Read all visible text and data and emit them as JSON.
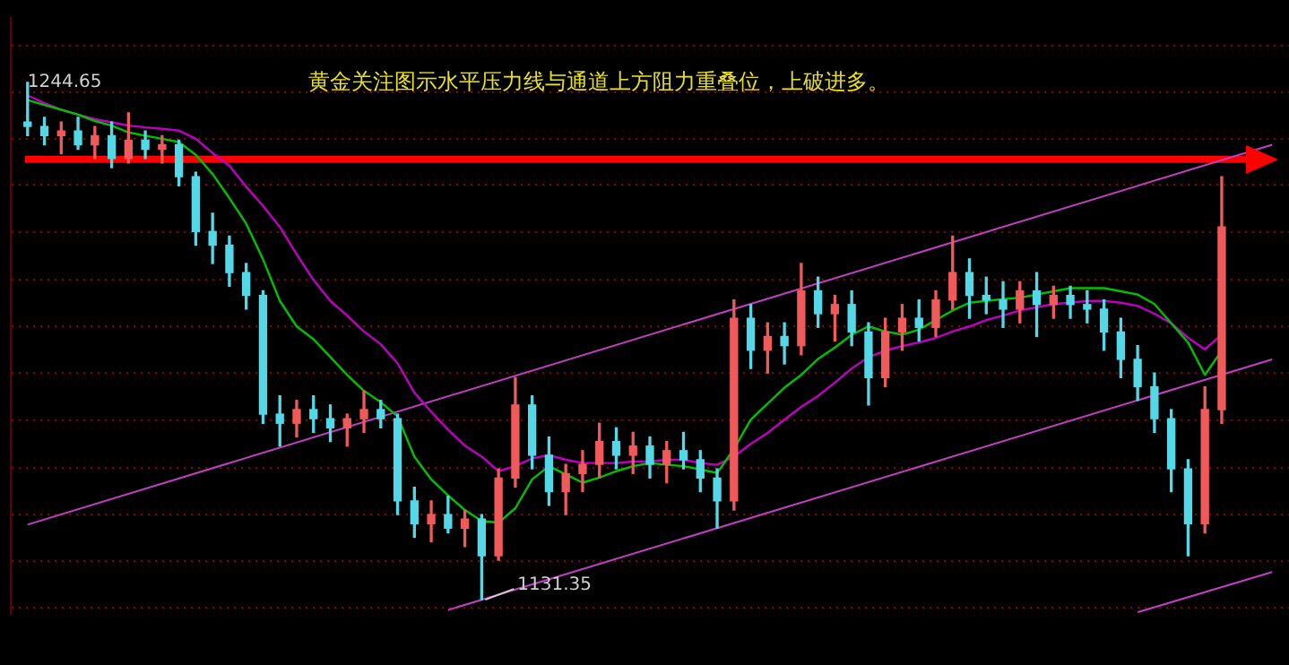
{
  "chart_data": {
    "type": "candlestick",
    "title": "黄金关注图示水平压力线与通道上方阻力重叠位，上破进多。",
    "categories": [
      null,
      null,
      null,
      null,
      null,
      null,
      null,
      null,
      null,
      null,
      null,
      null,
      null,
      null,
      null,
      null,
      null,
      null,
      null,
      null,
      null,
      null,
      null,
      null,
      null,
      null,
      null,
      null,
      null,
      null,
      null,
      null,
      null,
      null,
      null,
      null,
      null,
      null,
      null,
      null,
      null,
      null,
      null,
      null,
      null,
      null,
      null,
      null,
      null,
      null,
      null,
      null,
      null,
      null,
      null,
      null,
      null,
      null,
      null,
      null,
      null,
      null,
      null,
      null,
      null,
      null,
      null,
      null,
      null,
      null,
      null,
      null,
      null,
      null,
      null
    ],
    "ohlc": [
      [
        1236,
        1244.65,
        1233,
        1235
      ],
      [
        1235,
        1237,
        1231,
        1233
      ],
      [
        1233,
        1236,
        1229,
        1234
      ],
      [
        1234,
        1237,
        1230,
        1231
      ],
      [
        1231,
        1235,
        1228,
        1233
      ],
      [
        1233,
        1236,
        1226,
        1228
      ],
      [
        1228,
        1238,
        1227,
        1232
      ],
      [
        1232,
        1234,
        1228,
        1230
      ],
      [
        1230,
        1233,
        1227,
        1231
      ],
      [
        1231,
        1232,
        1222,
        1224
      ],
      [
        1224,
        1225,
        1209,
        1212
      ],
      [
        1212,
        1216,
        1205,
        1209
      ],
      [
        1209,
        1211,
        1200,
        1203
      ],
      [
        1203,
        1205,
        1195,
        1198
      ],
      [
        1198,
        1199,
        1170,
        1172
      ],
      [
        1172,
        1176,
        1165,
        1170
      ],
      [
        1170,
        1175,
        1167,
        1173
      ],
      [
        1173,
        1176,
        1168,
        1171
      ],
      [
        1171,
        1174,
        1166,
        1169
      ],
      [
        1169,
        1172,
        1165,
        1171
      ],
      [
        1171,
        1177,
        1168,
        1173
      ],
      [
        1173,
        1175,
        1169,
        1171
      ],
      [
        1171,
        1172,
        1150,
        1153
      ],
      [
        1153,
        1156,
        1145,
        1148
      ],
      [
        1148,
        1153,
        1144,
        1150
      ],
      [
        1150,
        1154,
        1146,
        1147
      ],
      [
        1147,
        1151,
        1143,
        1149
      ],
      [
        1149,
        1150,
        1131.35,
        1141
      ],
      [
        1141,
        1160,
        1140,
        1158
      ],
      [
        1158,
        1180,
        1156,
        1174
      ],
      [
        1174,
        1176,
        1160,
        1163
      ],
      [
        1163,
        1167,
        1152,
        1155
      ],
      [
        1155,
        1161,
        1150,
        1159
      ],
      [
        1159,
        1164,
        1155,
        1161
      ],
      [
        1161,
        1170,
        1158,
        1166
      ],
      [
        1166,
        1169,
        1160,
        1163
      ],
      [
        1163,
        1168,
        1159,
        1165
      ],
      [
        1165,
        1167,
        1158,
        1161
      ],
      [
        1161,
        1166,
        1157,
        1164
      ],
      [
        1164,
        1168,
        1160,
        1162
      ],
      [
        1162,
        1164,
        1155,
        1158
      ],
      [
        1158,
        1160,
        1147,
        1153
      ],
      [
        1153,
        1197,
        1151,
        1193
      ],
      [
        1193,
        1196,
        1182,
        1186
      ],
      [
        1186,
        1192,
        1181,
        1189
      ],
      [
        1189,
        1192,
        1183,
        1187
      ],
      [
        1187,
        1205,
        1185,
        1199
      ],
      [
        1199,
        1202,
        1191,
        1194
      ],
      [
        1194,
        1198,
        1188,
        1196
      ],
      [
        1196,
        1199,
        1187,
        1190
      ],
      [
        1190,
        1192,
        1174,
        1180
      ],
      [
        1180,
        1193,
        1178,
        1190
      ],
      [
        1190,
        1196,
        1186,
        1193
      ],
      [
        1193,
        1197,
        1188,
        1191
      ],
      [
        1191,
        1199,
        1189,
        1197
      ],
      [
        1197,
        1211,
        1195,
        1203
      ],
      [
        1203,
        1206,
        1193,
        1198
      ],
      [
        1198,
        1202,
        1194,
        1197
      ],
      [
        1197,
        1201,
        1191,
        1195
      ],
      [
        1195,
        1201,
        1192,
        1199
      ],
      [
        1199,
        1203,
        1189,
        1196
      ],
      [
        1196,
        1200,
        1193,
        1198
      ],
      [
        1198,
        1200,
        1193,
        1196
      ],
      [
        1196,
        1199,
        1192,
        1195
      ],
      [
        1195,
        1197,
        1186,
        1190
      ],
      [
        1190,
        1193,
        1180,
        1184
      ],
      [
        1184,
        1187,
        1175,
        1178
      ],
      [
        1178,
        1181,
        1168,
        1171
      ],
      [
        1171,
        1173,
        1155,
        1160
      ],
      [
        1160,
        1162,
        1141,
        1148
      ],
      [
        1148,
        1178,
        1146,
        1173
      ],
      [
        1173,
        1224,
        1170,
        1213
      ],
      null,
      null,
      null
    ],
    "colors": [
      "#54d8e8",
      "#54d8e8",
      "#f05a5a",
      "#54d8e8",
      "#f05a5a",
      "#54d8e8",
      "#f05a5a",
      "#54d8e8",
      "#f05a5a",
      "#54d8e8",
      "#54d8e8",
      "#54d8e8",
      "#54d8e8",
      "#54d8e8",
      "#54d8e8",
      "#54d8e8",
      "#f05a5a",
      "#54d8e8",
      "#54d8e8",
      "#f05a5a",
      "#f05a5a",
      "#54d8e8",
      "#54d8e8",
      "#54d8e8",
      "#f05a5a",
      "#54d8e8",
      "#f05a5a",
      "#54d8e8",
      "#f05a5a",
      "#f05a5a",
      "#54d8e8",
      "#54d8e8",
      "#f05a5a",
      "#f05a5a",
      "#f05a5a",
      "#54d8e8",
      "#f05a5a",
      "#54d8e8",
      "#f05a5a",
      "#54d8e8",
      "#54d8e8",
      "#54d8e8",
      "#f05a5a",
      "#54d8e8",
      "#f05a5a",
      "#54d8e8",
      "#f05a5a",
      "#54d8e8",
      "#f05a5a",
      "#54d8e8",
      "#54d8e8",
      "#f05a5a",
      "#f05a5a",
      "#54d8e8",
      "#f05a5a",
      "#f05a5a",
      "#54d8e8",
      "#54d8e8",
      "#54d8e8",
      "#f05a5a",
      "#54d8e8",
      "#f05a5a",
      "#54d8e8",
      "#54d8e8",
      "#54d8e8",
      "#54d8e8",
      "#54d8e8",
      "#54d8e8",
      "#54d8e8",
      "#54d8e8",
      "#f05a5a",
      "#f05a5a",
      null,
      null,
      null
    ],
    "series": [
      {
        "type": "line",
        "color": "#00c000",
        "values": [
          1240.8,
          1239.7,
          1238.7,
          1237.6,
          1236.2,
          1235.2,
          1233.7,
          1233.0,
          1232.3,
          1231.6,
          1228.8,
          1224.6,
          1219.3,
          1213.7,
          1205.9,
          1196.8,
          1191.2,
          1188.4,
          1184.5,
          1180.6,
          1177.1,
          1174.6,
          1171.5,
          1162.7,
          1157.7,
          1154.2,
          1151.0,
          1148.6,
          1148.2,
          1151.4,
          1157.7,
          1160.6,
          1158.8,
          1157.0,
          1158.1,
          1159.5,
          1160.6,
          1161.3,
          1160.9,
          1160.6,
          1159.9,
          1159.1,
          1164.4,
          1170.8,
          1174.3,
          1177.8,
          1180.6,
          1184.1,
          1186.6,
          1189.4,
          1191.2,
          1190.1,
          1189.4,
          1190.5,
          1192.6,
          1194.7,
          1196.4,
          1196.8,
          1197.2,
          1197.5,
          1198.2,
          1198.9,
          1199.6,
          1199.6,
          1199.6,
          1198.9,
          1198.2,
          1196.1,
          1191.9,
          1187.7,
          1180.6,
          1185.9,
          null,
          null,
          null
        ]
      },
      {
        "type": "line",
        "color": "#c000c0",
        "values": [
          1241.8,
          1240.1,
          1238.7,
          1237.6,
          1236.6,
          1235.9,
          1235.2,
          1234.8,
          1234.5,
          1234.1,
          1232.3,
          1229.2,
          1226.4,
          1221.8,
          1217.6,
          1213.0,
          1207.0,
          1201.4,
          1196.8,
          1193.6,
          1190.1,
          1187.3,
          1183.1,
          1176.7,
          1172.5,
          1168.6,
          1165.1,
          1162.7,
          1159.5,
          1160.6,
          1162.3,
          1163.0,
          1162.0,
          1161.3,
          1161.3,
          1161.3,
          1161.6,
          1161.6,
          1162.0,
          1162.0,
          1161.3,
          1160.9,
          1162.7,
          1165.5,
          1167.9,
          1170.8,
          1173.6,
          1176.0,
          1178.9,
          1182.0,
          1184.5,
          1185.9,
          1186.9,
          1187.7,
          1188.7,
          1190.1,
          1191.2,
          1192.6,
          1193.6,
          1194.7,
          1195.4,
          1196.1,
          1196.4,
          1196.8,
          1196.8,
          1196.4,
          1195.7,
          1194.0,
          1191.9,
          1188.7,
          1186.2,
          1189.4,
          null,
          null,
          null
        ]
      },
      {
        "type": "line",
        "color": "#c040c0",
        "values": [
          1147.8,
          null,
          null,
          null,
          null,
          null,
          null,
          null,
          null,
          null,
          null,
          null,
          null,
          null,
          null,
          null,
          null,
          null,
          null,
          null,
          null,
          null,
          null,
          null,
          null,
          null,
          null,
          null,
          null,
          null,
          null,
          null,
          null,
          null,
          null,
          null,
          null,
          null,
          null,
          null,
          null,
          null,
          null,
          null,
          null,
          null,
          null,
          null,
          null,
          null,
          null,
          null,
          null,
          null,
          null,
          null,
          null,
          null,
          null,
          null,
          null,
          null,
          null,
          null,
          null,
          null,
          null,
          null,
          null,
          null,
          null,
          null,
          null,
          null,
          1231.0
        ]
      },
      {
        "type": "line",
        "color": "#c040c0",
        "values": [
          null,
          null,
          null,
          null,
          null,
          null,
          null,
          null,
          null,
          null,
          null,
          null,
          null,
          null,
          null,
          null,
          null,
          null,
          null,
          null,
          null,
          null,
          null,
          null,
          null,
          1129.1,
          null,
          null,
          null,
          null,
          null,
          null,
          null,
          null,
          null,
          null,
          null,
          null,
          null,
          null,
          null,
          null,
          null,
          null,
          null,
          null,
          null,
          null,
          null,
          null,
          null,
          null,
          null,
          null,
          null,
          null,
          null,
          null,
          null,
          null,
          null,
          null,
          null,
          null,
          null,
          null,
          null,
          null,
          null,
          null,
          null,
          null,
          null,
          null,
          1184.0
        ]
      },
      {
        "type": "line",
        "color": "#c040c0",
        "values": [
          null,
          null,
          null,
          null,
          null,
          null,
          null,
          null,
          null,
          null,
          null,
          null,
          null,
          null,
          null,
          null,
          null,
          null,
          null,
          null,
          null,
          null,
          null,
          null,
          null,
          null,
          null,
          null,
          null,
          null,
          null,
          null,
          null,
          null,
          null,
          null,
          null,
          null,
          null,
          null,
          null,
          null,
          null,
          null,
          null,
          null,
          null,
          null,
          null,
          null,
          null,
          null,
          null,
          null,
          null,
          null,
          null,
          null,
          null,
          null,
          null,
          null,
          null,
          null,
          null,
          null,
          1128.6,
          null,
          null,
          null,
          null,
          null,
          null,
          null,
          1137.4
        ]
      }
    ],
    "ylim": [
      1128.2,
      1258.7
    ],
    "yticks": [
      {
        "value": 1252.7,
        "label": null
      },
      {
        "value": 1242.5,
        "label": null
      },
      {
        "value": 1232.3,
        "label": null
      },
      {
        "value": 1222.2,
        "label": null
      },
      {
        "value": 1211.9,
        "label": null
      },
      {
        "value": 1201.4,
        "label": null
      },
      {
        "value": 1191.2,
        "label": null
      },
      {
        "value": 1181.0,
        "label": null
      },
      {
        "value": 1170.7,
        "label": null
      },
      {
        "value": 1160.2,
        "label": null
      },
      {
        "value": 1150.0,
        "label": null
      },
      {
        "value": 1139.8,
        "label": null
      },
      {
        "value": 1129.6,
        "label": null
      }
    ],
    "grid": "y",
    "ref_lines": [
      {
        "axis": "y",
        "value": 1227.8,
        "color": "#ff0000"
      }
    ],
    "annotations": [
      "1244.65",
      "1131.35"
    ]
  }
}
